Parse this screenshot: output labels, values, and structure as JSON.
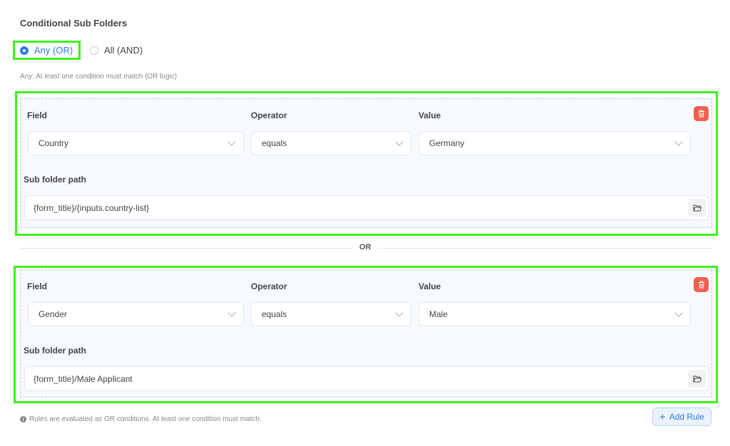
{
  "title": "Conditional Sub Folders",
  "logic": {
    "options": [
      {
        "label": "Any (OR)",
        "selected": true
      },
      {
        "label": "All (AND)",
        "selected": false
      }
    ],
    "help": "Any: At least one condition must match (OR logic)"
  },
  "labels": {
    "field": "Field",
    "operator": "Operator",
    "value": "Value",
    "path": "Sub folder path"
  },
  "rules": [
    {
      "field": "Country",
      "operator": "equals",
      "value": "Germany",
      "path": "{form_title}/{inputs.country-list}"
    },
    {
      "field": "Gender",
      "operator": "equals",
      "value": "Male",
      "path": "{form_title}/Male Applicant"
    }
  ],
  "separator": "OR",
  "footer": {
    "note": "Rules are evaluated as OR conditions. At least one condition must match.",
    "add_rule": "Add Rule"
  },
  "colors": {
    "accent": "#2d7be5",
    "delete": "#f05f4f",
    "highlight": "#3ef21c"
  }
}
